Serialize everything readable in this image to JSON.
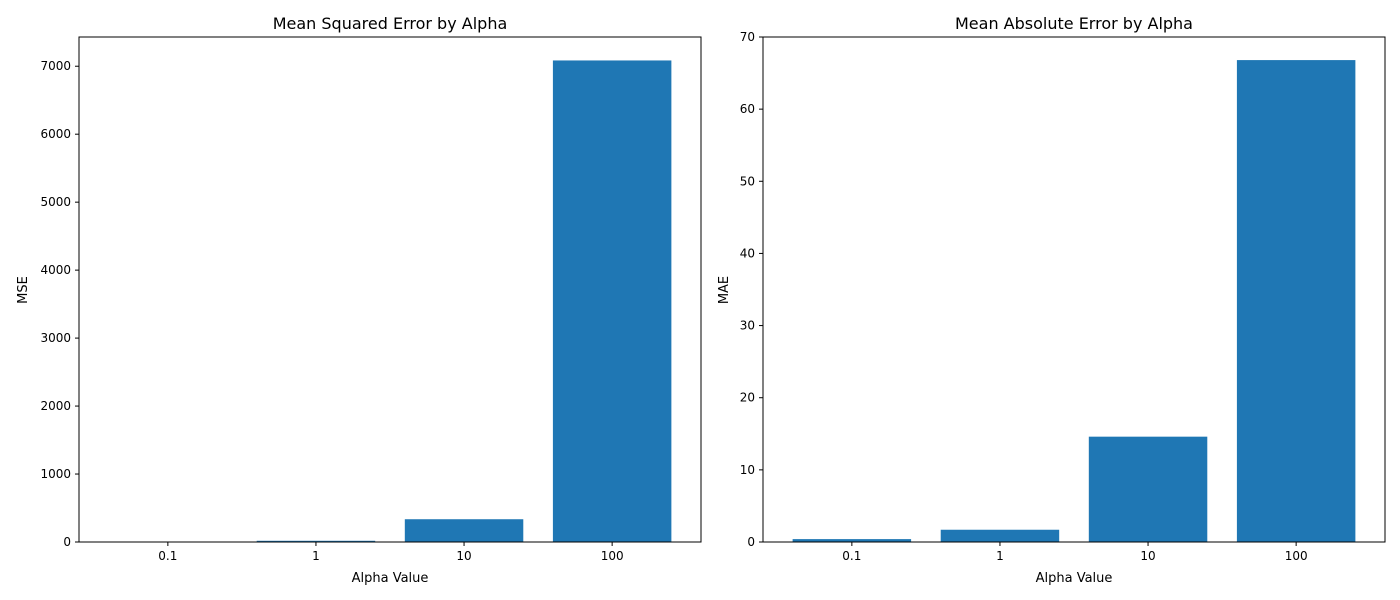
{
  "chart_data": [
    {
      "type": "bar",
      "title": "Mean Squared Error by Alpha",
      "xlabel": "Alpha Value",
      "ylabel": "MSE",
      "categories": [
        "0.1",
        "1",
        "10",
        "100"
      ],
      "values": [
        0.5,
        18,
        335,
        7085
      ],
      "ylim": [
        0,
        7430
      ],
      "yticks": [
        0,
        1000,
        2000,
        3000,
        4000,
        5000,
        6000,
        7000
      ],
      "bar_color": "#1f77b4",
      "grid": false
    },
    {
      "type": "bar",
      "title": "Mean Absolute Error by Alpha",
      "xlabel": "Alpha Value",
      "ylabel": "MAE",
      "categories": [
        "0.1",
        "1",
        "10",
        "100"
      ],
      "values": [
        0.4,
        1.7,
        14.6,
        66.8
      ],
      "ylim": [
        0,
        70
      ],
      "yticks": [
        0,
        10,
        20,
        30,
        40,
        50,
        60,
        70
      ],
      "bar_color": "#1f77b4",
      "grid": false
    }
  ]
}
